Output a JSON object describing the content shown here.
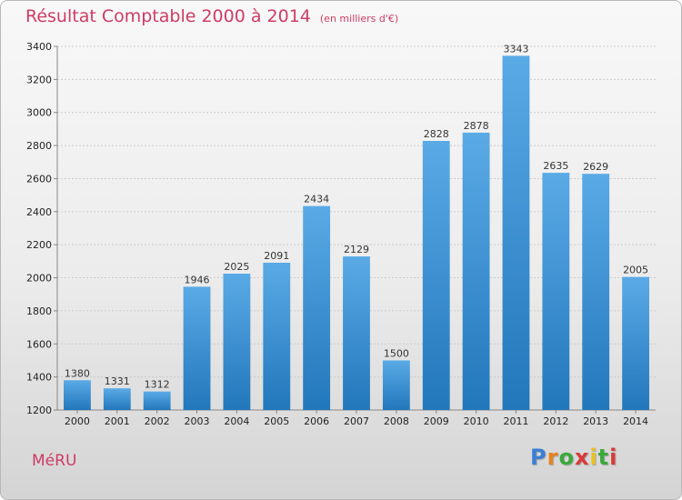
{
  "page": {
    "title": "Résultat Comptable 2000 à 2014",
    "subtitle": "(en milliers d'€)",
    "place": "MéRU",
    "logo": {
      "text": "Proxiti",
      "letter_colors": [
        "#3a7fd5",
        "#e8821e",
        "#3aa93a",
        "#d93a3a",
        "#e8c21e",
        "#3aa93a",
        "#d93a3a"
      ]
    }
  },
  "colors": {
    "title": "#cf3b64",
    "bar_top": "#5aaae6",
    "bar_bottom": "#2277bb",
    "grid": "#cccccc"
  },
  "chart_data": {
    "type": "bar",
    "title": "Résultat Comptable 2000 à 2014",
    "subtitle": "(en milliers d'€)",
    "categories": [
      "2000",
      "2001",
      "2002",
      "2003",
      "2004",
      "2005",
      "2006",
      "2007",
      "2008",
      "2009",
      "2010",
      "2011",
      "2012",
      "2013",
      "2014"
    ],
    "values": [
      1380,
      1331,
      1312,
      1946,
      2025,
      2091,
      2434,
      2129,
      1500,
      2828,
      2878,
      3343,
      2635,
      2629,
      2005
    ],
    "ylim": [
      1200,
      3400
    ],
    "yticks": [
      1200,
      1400,
      1600,
      1800,
      2000,
      2200,
      2400,
      2600,
      2800,
      3000,
      3200,
      3400
    ],
    "grid": true,
    "legend": "none",
    "data_labels": true
  }
}
